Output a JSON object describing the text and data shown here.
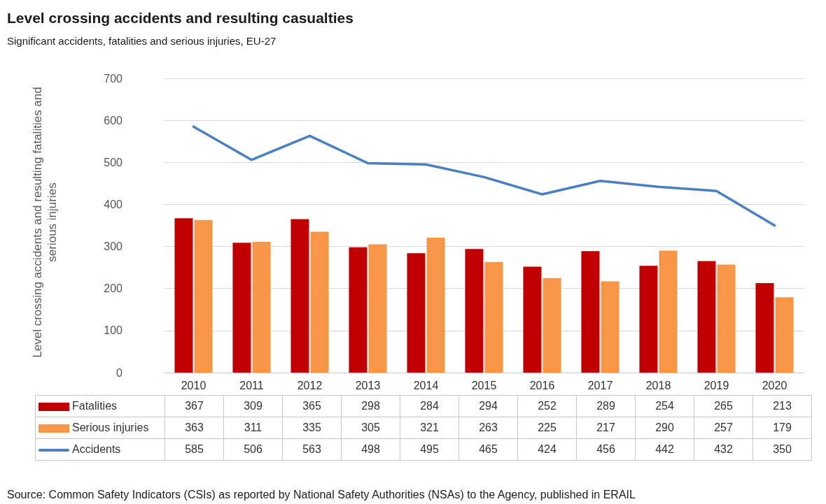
{
  "chart_data": {
    "type": "bar",
    "title": "Level crossing accidents and resulting casualties",
    "subtitle": "Significant accidents, fatalities and serious injuries, EU-27",
    "ylabel": "Level crossing accidents and resulting fatalities and serious injuries",
    "categories": [
      "2010",
      "2011",
      "2012",
      "2013",
      "2014",
      "2015",
      "2016",
      "2017",
      "2018",
      "2019",
      "2020"
    ],
    "series": [
      {
        "name": "Fatalities",
        "color": "#c00000",
        "values": [
          367,
          309,
          365,
          298,
          284,
          294,
          252,
          289,
          254,
          265,
          213
        ]
      },
      {
        "name": "Serious injuries",
        "color": "#f79646",
        "values": [
          363,
          311,
          335,
          305,
          321,
          263,
          225,
          217,
          290,
          257,
          179
        ]
      },
      {
        "name": "Accidents",
        "type": "line",
        "color": "#4a7fc1",
        "values": [
          585,
          506,
          563,
          498,
          495,
          465,
          424,
          456,
          442,
          432,
          350
        ]
      }
    ],
    "ylim": [
      0,
      700
    ],
    "yticks": [
      0,
      100,
      200,
      300,
      400,
      500,
      600,
      700
    ],
    "grid": "y",
    "legend": "bottom",
    "data_labels": true,
    "marker": "none",
    "annotations": [
      "Source: Common Safety Indicators (CSIs) as reported by National Safety Authorities (NSAs) to the Agency, published in ERAIL"
    ]
  }
}
